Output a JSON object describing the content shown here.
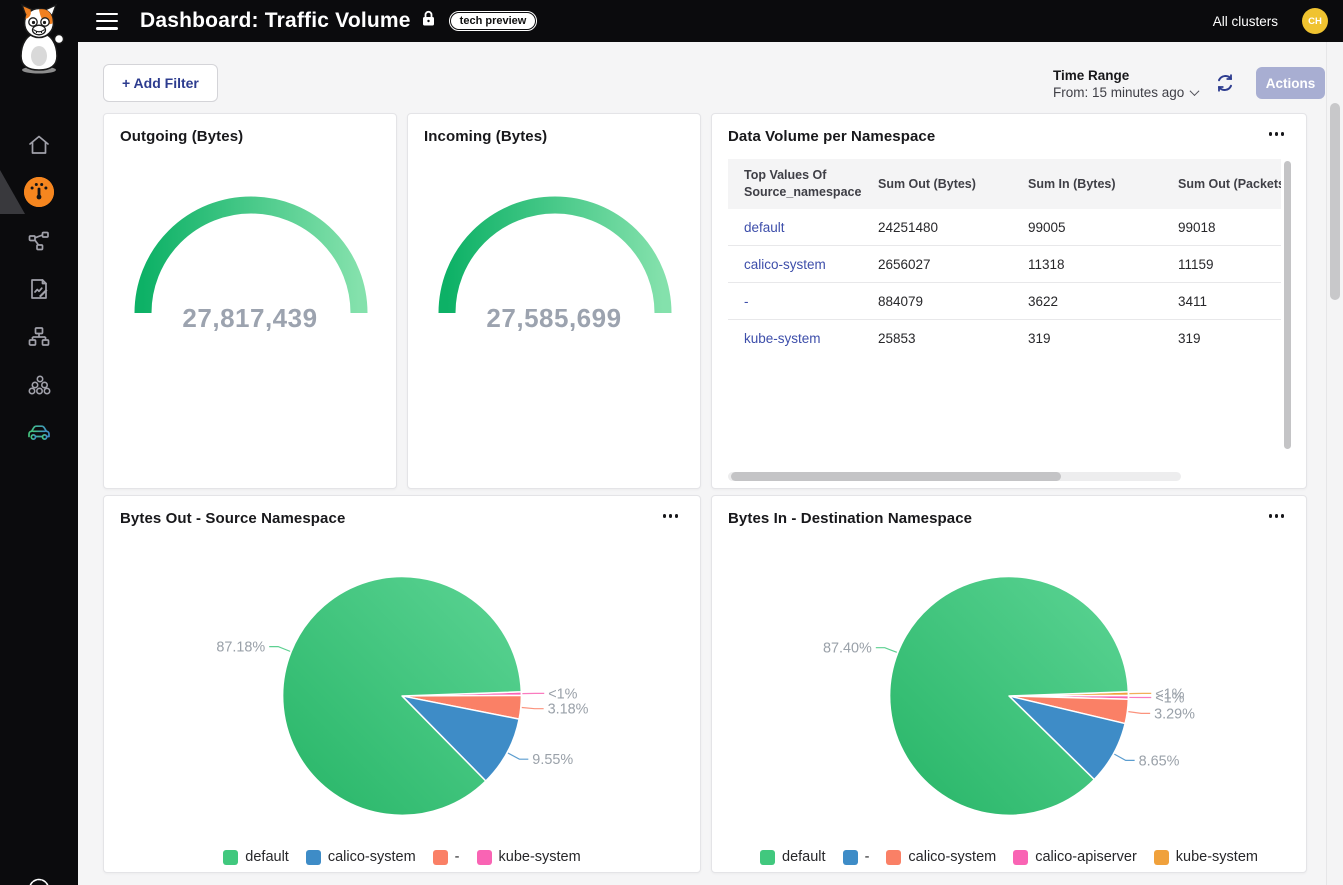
{
  "header": {
    "title": "Dashboard: Traffic Volume",
    "badge": "tech preview",
    "cluster_selector": "All clusters",
    "avatar_initials": "CH"
  },
  "toolbar": {
    "add_filter_label": "+ Add Filter",
    "time_range_label": "Time Range",
    "time_range_value": "From: 15 minutes ago",
    "actions_label": "Actions"
  },
  "table_card": {
    "title": "Data Volume per Namespace",
    "columns": [
      "Top Values Of Source_namespace",
      "Sum Out (Bytes)",
      "Sum In (Bytes)",
      "Sum Out (Packets)"
    ],
    "rows": [
      [
        "default",
        "24251480",
        "99005",
        "99018"
      ],
      [
        "calico-system",
        "2656027",
        "11318",
        "11159"
      ],
      [
        "-",
        "884079",
        "3622",
        "3411"
      ],
      [
        "kube-system",
        "25853",
        "319",
        "319"
      ]
    ]
  },
  "chart_data": [
    {
      "type": "gauge",
      "title": "Outgoing (Bytes)",
      "value": 27817439,
      "display": "27,817,439",
      "color": "#2fbc69"
    },
    {
      "type": "gauge",
      "title": "Incoming (Bytes)",
      "value": 27585699,
      "display": "27,585,699",
      "color": "#2fbc69"
    },
    {
      "type": "pie",
      "title": "Bytes Out - Source Namespace",
      "legend_position": "bottom",
      "slices": [
        {
          "name": "default",
          "pct": 87.18,
          "label": "87.18%",
          "color": "#41c87e"
        },
        {
          "name": "calico-system",
          "pct": 9.55,
          "label": "9.55%",
          "color": "#3e8cc7"
        },
        {
          "name": "-",
          "pct": 3.18,
          "label": "3.18%",
          "color": "#fa8066"
        },
        {
          "name": "kube-system",
          "pct": 0.5,
          "label": "<1%",
          "color": "#f964b4"
        }
      ]
    },
    {
      "type": "pie",
      "title": "Bytes In - Destination Namespace",
      "legend_position": "bottom",
      "slices": [
        {
          "name": "default",
          "pct": 87.4,
          "label": "87.40%",
          "color": "#41c87e"
        },
        {
          "name": "-",
          "pct": 8.65,
          "label": "8.65%",
          "color": "#3e8cc7"
        },
        {
          "name": "calico-system",
          "pct": 3.29,
          "label": "3.29%",
          "color": "#fa8066"
        },
        {
          "name": "calico-apiserver",
          "pct": 0.5,
          "label": "<1%",
          "color": "#f964b4"
        },
        {
          "name": "kube-system",
          "pct": 0.5,
          "label": "<1%",
          "color": "#f0a13c"
        }
      ]
    }
  ],
  "colors": {
    "header_bg": "#0b0b0d",
    "accent_orange": "#f6861f",
    "link_blue": "#3d4eaa",
    "actions_bg": "#a8aed2",
    "avatar_bg": "#f0c330",
    "gauge_green_start": "#0db166",
    "gauge_green_end": "#84e1ac",
    "pie_green": "#41c87e",
    "pie_blue": "#3e8cc7",
    "pie_salmon": "#fa8066",
    "pie_pink": "#f964b4",
    "pie_amber": "#f0a13c",
    "label_gray": "#9aa1a9"
  }
}
